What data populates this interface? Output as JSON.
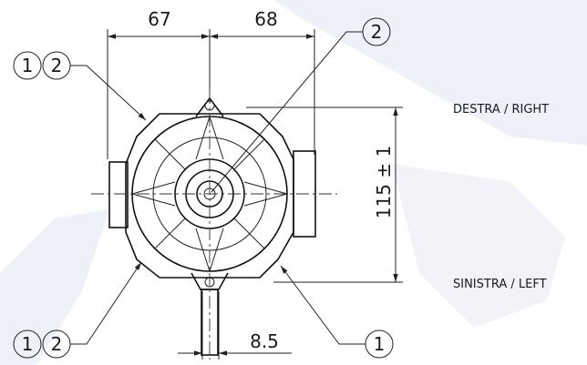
{
  "dimensions": {
    "top_left": "67",
    "top_right": "68",
    "height": "115 ± 1",
    "bottom": "8.5"
  },
  "labels": {
    "right": "DESTRA / RIGHT",
    "left": "SINISTRA / LEFT"
  },
  "callouts": {
    "top_left": [
      "1",
      "2"
    ],
    "top_right": "2",
    "bottom_left": [
      "1",
      "2"
    ],
    "bottom_right": "1"
  }
}
